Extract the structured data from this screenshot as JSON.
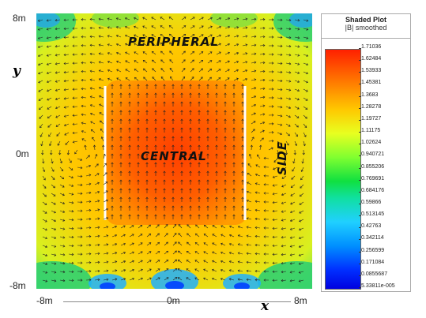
{
  "plot": {
    "labels": {
      "peripheral": "PERIPHERAL",
      "central": "CENTRAL",
      "side": "SIDE"
    },
    "y_axis": {
      "name": "y",
      "top": "8m",
      "mid": "0m",
      "bottom": "-8m"
    },
    "x_axis": {
      "name": "x",
      "left": "-8m",
      "mid": "0m",
      "right": "8m"
    }
  },
  "legend": {
    "title": "Shaded Plot",
    "subtitle": "|B| smoothed",
    "ticks": [
      "1.71036",
      "1.62484",
      "1.53933",
      "1.45381",
      "1.3683",
      "1.28278",
      "1.19727",
      "1.11175",
      "1.02624",
      "0.940721",
      "0.855206",
      "0.769691",
      "0.684176",
      "0.59866",
      "0.513145",
      "0.42763",
      "0.342114",
      "0.256599",
      "0.171084",
      "0.0855687",
      "5.33811e-005"
    ]
  },
  "colors": {
    "high": "#ff2000",
    "mid": "#ffc800",
    "low_green": "#10e040",
    "low_blue": "#0030ff"
  }
}
